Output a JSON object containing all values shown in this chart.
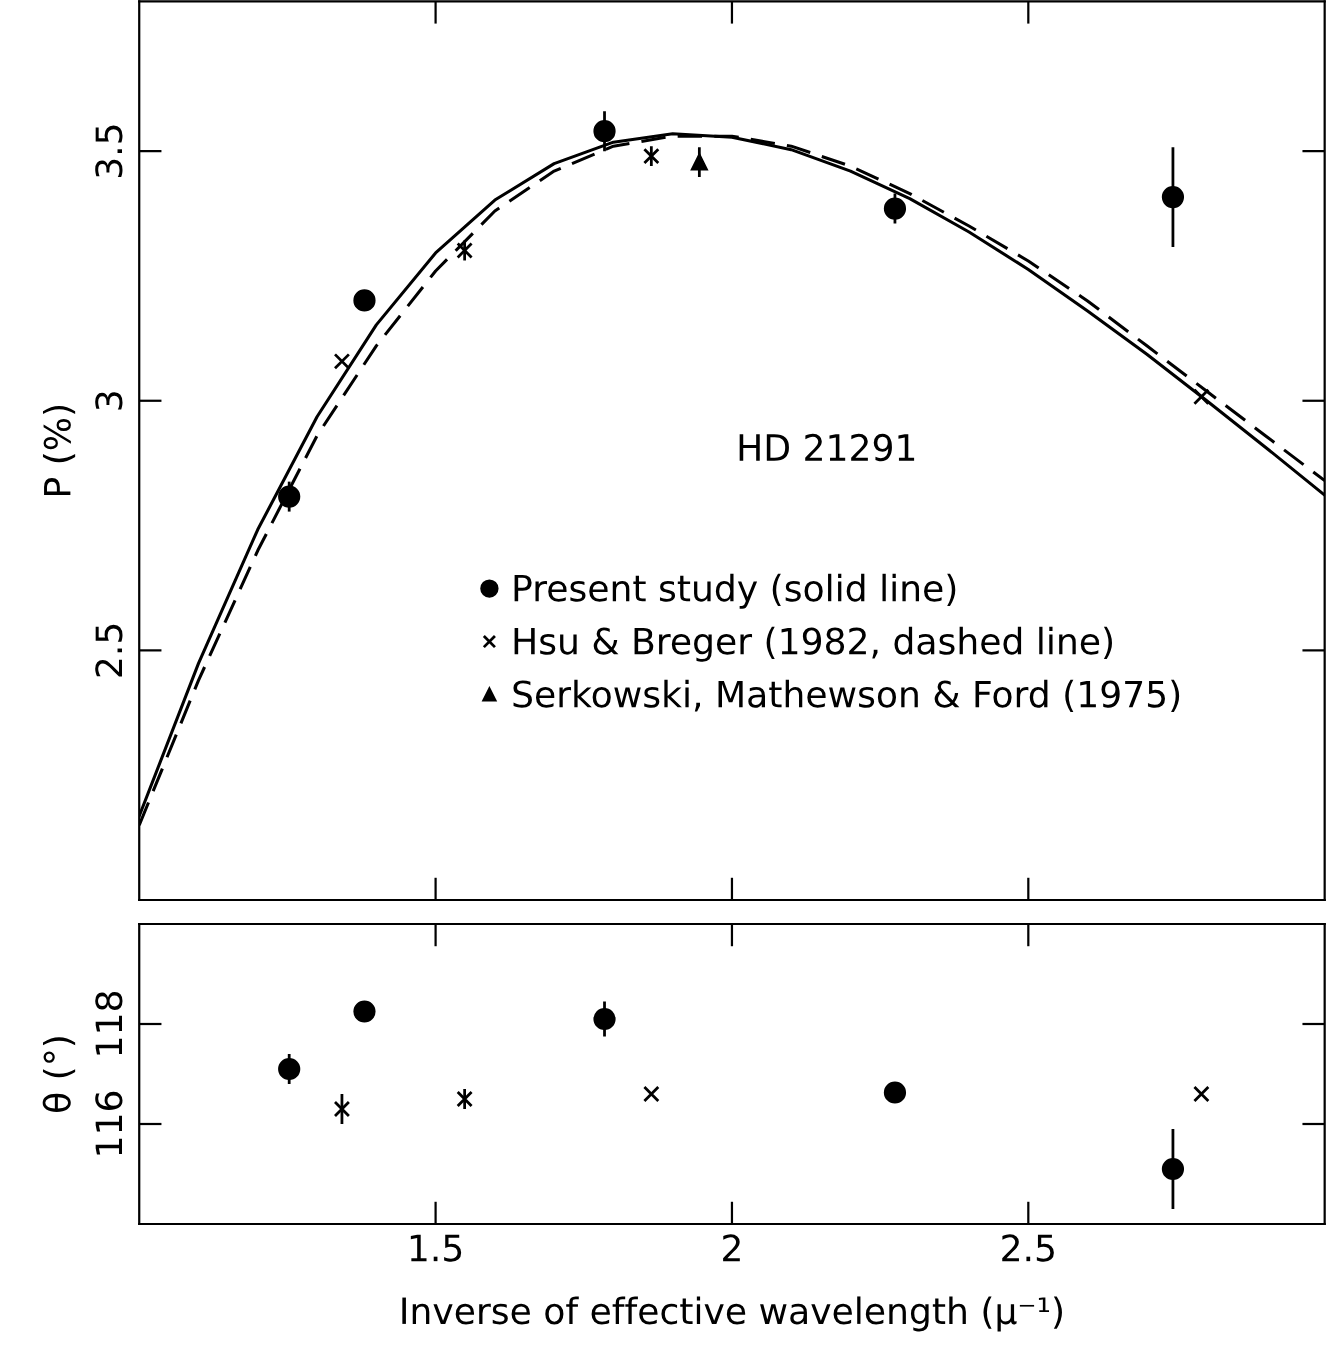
{
  "chart_data": [
    {
      "type": "scatter",
      "ylabel": "P (%)",
      "annotations": [
        "HD 21291"
      ],
      "xlim": [
        1.0,
        3.0
      ],
      "xticks": [
        1.5,
        2,
        2.5
      ],
      "ylim": [
        2.0,
        3.8
      ],
      "yticks": [
        2.5,
        3,
        3.5
      ],
      "tick_labels": "y",
      "grid": false,
      "legend": "bottom",
      "series": [
        {
          "name": "Present study (solid line)",
          "color": "#000000",
          "marker": "circle",
          "x": [
            1.253,
            1.38,
            1.785,
            2.275,
            2.744
          ],
          "values": [
            2.808,
            3.201,
            3.54,
            3.385,
            3.408
          ],
          "errors": [
            0.03,
            0.02,
            0.04,
            0.03,
            0.1
          ]
        },
        {
          "name": "Hsu & Breger (1982, dashed line)",
          "color": "#000000",
          "marker": "cross",
          "x": [
            1.342,
            1.549,
            1.864,
            2.792
          ],
          "values": [
            3.079,
            3.301,
            3.49,
            3.008
          ],
          "errors": [
            null,
            0.02,
            0.02,
            null
          ]
        },
        {
          "name": "Serkowski, Mathewson & Ford (1975)",
          "color": "#000000",
          "marker": "triangle",
          "x": [
            1.945
          ],
          "values": [
            3.478
          ],
          "errors": [
            0.03
          ]
        },
        {
          "type": "line",
          "color": "#000000",
          "line_style": "solid",
          "x": [
            1.0,
            1.1,
            1.2,
            1.3,
            1.4,
            1.5,
            1.6,
            1.7,
            1.8,
            1.9,
            2.0,
            2.1,
            2.2,
            2.3,
            2.4,
            2.5,
            2.6,
            2.7,
            2.8,
            2.9,
            3.0
          ],
          "values": [
            2.168,
            2.474,
            2.742,
            2.968,
            3.152,
            3.296,
            3.402,
            3.475,
            3.518,
            3.535,
            3.528,
            3.503,
            3.46,
            3.405,
            3.338,
            3.263,
            3.18,
            3.093,
            3.001,
            2.907,
            2.811
          ]
        },
        {
          "type": "line",
          "color": "#000000",
          "line_style": "dashed",
          "x": [
            1.0,
            1.1,
            1.2,
            1.3,
            1.4,
            1.5,
            1.6,
            1.7,
            1.8,
            1.9,
            2.0,
            2.1,
            2.2,
            2.3,
            2.4,
            2.5,
            2.6,
            2.7,
            2.8,
            2.9,
            3.0
          ],
          "values": [
            2.15,
            2.44,
            2.7,
            2.93,
            3.11,
            3.26,
            3.38,
            3.46,
            3.51,
            3.53,
            3.53,
            3.51,
            3.47,
            3.415,
            3.35,
            3.28,
            3.2,
            3.11,
            3.02,
            2.93,
            2.84
          ]
        }
      ]
    },
    {
      "type": "scatter",
      "xlabel": "Inverse of effective wavelength (μ⁻¹)",
      "ylabel": "θ (°)",
      "xlim": [
        1.0,
        3.0
      ],
      "xticks": [
        1.5,
        2,
        2.5
      ],
      "ylim": [
        114,
        120
      ],
      "yticks": [
        116,
        118
      ],
      "grid": false,
      "legend": false,
      "series": [
        {
          "color": "#000000",
          "marker": "circle",
          "x": [
            1.253,
            1.38,
            1.785,
            2.275,
            2.744
          ],
          "values": [
            117.1,
            118.25,
            118.1,
            116.63,
            115.1
          ],
          "errors": [
            0.3,
            0.15,
            0.35,
            0.2,
            0.8
          ]
        },
        {
          "color": "#000000",
          "marker": "cross",
          "x": [
            1.342,
            1.549,
            1.864,
            2.792
          ],
          "values": [
            116.3,
            116.5,
            116.6,
            116.6
          ],
          "errors": [
            0.3,
            0.2,
            null,
            null
          ]
        }
      ]
    }
  ]
}
